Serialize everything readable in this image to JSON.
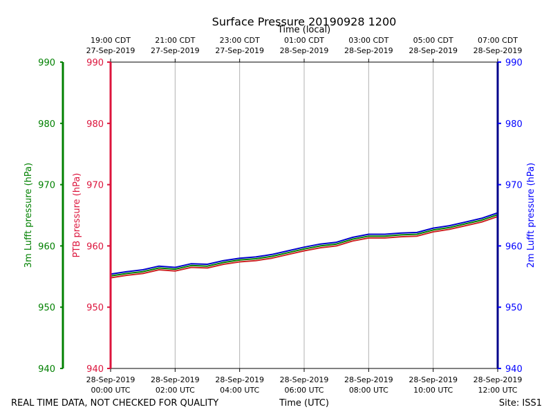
{
  "chart_data": {
    "type": "line",
    "title": "Surface Pressure 20190928 1200",
    "top_axis_title": "Time (local)",
    "bottom_axis_title": "Time (UTC)",
    "footer_left": "REAL TIME DATA, NOT CHECKED FOR QUALITY",
    "footer_right": "Site: ISS1",
    "x_range_hours": [
      0,
      12
    ],
    "bottom_ticks": [
      {
        "hour": 0,
        "line1": "28-Sep-2019",
        "line2": "00:00 UTC"
      },
      {
        "hour": 2,
        "line1": "28-Sep-2019",
        "line2": "02:00 UTC"
      },
      {
        "hour": 4,
        "line1": "28-Sep-2019",
        "line2": "04:00 UTC"
      },
      {
        "hour": 6,
        "line1": "28-Sep-2019",
        "line2": "06:00 UTC"
      },
      {
        "hour": 8,
        "line1": "28-Sep-2019",
        "line2": "08:00 UTC"
      },
      {
        "hour": 10,
        "line1": "28-Sep-2019",
        "line2": "10:00 UTC"
      },
      {
        "hour": 12,
        "line1": "28-Sep-2019",
        "line2": "12:00 UTC"
      }
    ],
    "top_ticks": [
      {
        "hour": 0,
        "line1": "19:00 CDT",
        "line2": "27-Sep-2019"
      },
      {
        "hour": 2,
        "line1": "21:00 CDT",
        "line2": "27-Sep-2019"
      },
      {
        "hour": 4,
        "line1": "23:00 CDT",
        "line2": "27-Sep-2019"
      },
      {
        "hour": 6,
        "line1": "01:00 CDT",
        "line2": "28-Sep-2019"
      },
      {
        "hour": 8,
        "line1": "03:00 CDT",
        "line2": "28-Sep-2019"
      },
      {
        "hour": 10,
        "line1": "05:00 CDT",
        "line2": "28-Sep-2019"
      },
      {
        "hour": 12,
        "line1": "07:00 CDT",
        "line2": "28-Sep-2019"
      }
    ],
    "y_axes": [
      {
        "id": "lufft3m",
        "label": "3m Lufft pressure (hPa)",
        "color": "#008000",
        "ylim": [
          940,
          990
        ],
        "ticks": [
          940,
          950,
          960,
          970,
          980,
          990
        ],
        "side": "outer-left"
      },
      {
        "id": "ptb",
        "label": "PTB pressure (hPa)",
        "color": "#dc143c",
        "ylim": [
          940,
          990
        ],
        "ticks": [
          940,
          950,
          960,
          970,
          980,
          990
        ],
        "side": "left"
      },
      {
        "id": "lufft2m",
        "label": "2m Lufft pressure (hPa)",
        "color": "#0000ff",
        "ylim": [
          940,
          990
        ],
        "ticks": [
          940,
          950,
          960,
          970,
          980,
          990
        ],
        "side": "right"
      }
    ],
    "series": [
      {
        "name": "PTB pressure",
        "color": "#cc2222",
        "x": [
          0,
          0.5,
          1,
          1.5,
          2,
          2.5,
          3,
          3.5,
          4,
          4.5,
          5,
          5.5,
          6,
          6.5,
          7,
          7.5,
          8,
          8.5,
          9,
          9.5,
          10,
          10.5,
          11,
          11.5,
          12
        ],
        "values": [
          954.8,
          955.2,
          955.5,
          956.1,
          955.9,
          956.5,
          956.4,
          957.0,
          957.4,
          957.6,
          958.0,
          958.6,
          959.2,
          959.7,
          960.0,
          960.8,
          961.3,
          961.3,
          961.5,
          961.6,
          962.3,
          962.7,
          963.3,
          963.9,
          964.8
        ]
      },
      {
        "name": "3m Lufft pressure",
        "color": "#008000",
        "x": [
          0,
          0.5,
          1,
          1.5,
          2,
          2.5,
          3,
          3.5,
          4,
          4.5,
          5,
          5.5,
          6,
          6.5,
          7,
          7.5,
          8,
          8.5,
          9,
          9.5,
          10,
          10.5,
          11,
          11.5,
          12
        ],
        "values": [
          955.1,
          955.5,
          955.8,
          956.4,
          956.2,
          956.8,
          956.7,
          957.3,
          957.7,
          957.9,
          958.3,
          958.9,
          959.5,
          960.0,
          960.3,
          961.1,
          961.6,
          961.6,
          961.8,
          961.9,
          962.6,
          963.0,
          963.6,
          964.2,
          965.1
        ]
      },
      {
        "name": "2m Lufft pressure",
        "color": "#0000cc",
        "x": [
          0,
          0.5,
          1,
          1.5,
          2,
          2.5,
          3,
          3.5,
          4,
          4.5,
          5,
          5.5,
          6,
          6.5,
          7,
          7.5,
          8,
          8.5,
          9,
          9.5,
          10,
          10.5,
          11,
          11.5,
          12
        ],
        "values": [
          955.4,
          955.8,
          956.1,
          956.7,
          956.5,
          957.1,
          957.0,
          957.6,
          958.0,
          958.2,
          958.6,
          959.2,
          959.8,
          960.3,
          960.6,
          961.4,
          961.9,
          961.9,
          962.1,
          962.2,
          962.9,
          963.3,
          963.9,
          964.5,
          965.4
        ]
      }
    ]
  }
}
